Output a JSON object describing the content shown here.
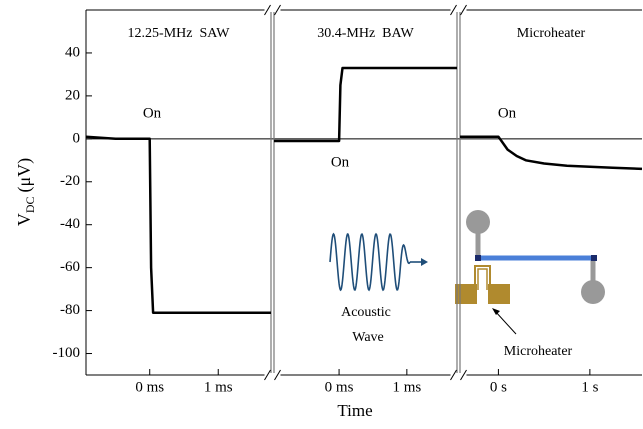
{
  "chart_data": {
    "type": "line",
    "ylabel": "V",
    "ylabel_sub": "DC",
    "ylabel_unit": "(μV)",
    "xlabel": "Time",
    "ylim": [
      -110,
      60
    ],
    "yticks": [
      -100,
      -80,
      -60,
      -40,
      -20,
      0,
      20,
      40
    ],
    "zero_line": true,
    "color": "#000000",
    "panels": [
      {
        "title": "12.25-MHz  SAW",
        "annotation": "On",
        "xlim": [
          -0.93,
          1.77
        ],
        "xticks": [
          {
            "value": 0,
            "label": "0 ms"
          },
          {
            "value": 1,
            "label": "1 ms"
          }
        ],
        "x": [
          -0.93,
          -0.5,
          0,
          0.02,
          0.05,
          0.5,
          1.0,
          1.77
        ],
        "values": [
          1,
          0,
          0,
          -60,
          -81,
          -81,
          -81,
          -81
        ]
      },
      {
        "title": "30.4-MHz  BAW",
        "annotation": "On",
        "xlim": [
          -0.96,
          1.74
        ],
        "xticks": [
          {
            "value": 0,
            "label": "0 ms"
          },
          {
            "value": 1,
            "label": "1 ms"
          }
        ],
        "x": [
          -0.96,
          -0.5,
          0,
          0.02,
          0.05,
          0.5,
          1.0,
          1.74
        ],
        "values": [
          -1,
          -1,
          -1,
          25,
          33,
          33,
          33,
          33
        ]
      },
      {
        "title": "Microheater",
        "annotation": "On",
        "xlim": [
          -0.42,
          1.57
        ],
        "xticks": [
          {
            "value": 0,
            "label": "0 s"
          },
          {
            "value": 1,
            "label": "1 s"
          }
        ],
        "x": [
          -0.42,
          -0.2,
          0,
          0.05,
          0.1,
          0.2,
          0.3,
          0.5,
          0.75,
          1.0,
          1.25,
          1.57
        ],
        "values": [
          1,
          1,
          1,
          -2,
          -5,
          -8,
          -10,
          -11.5,
          -12.5,
          -13,
          -13.5,
          -14
        ]
      }
    ],
    "inset_texts": [
      "Acoustic",
      "Wave",
      "Microheater"
    ]
  }
}
